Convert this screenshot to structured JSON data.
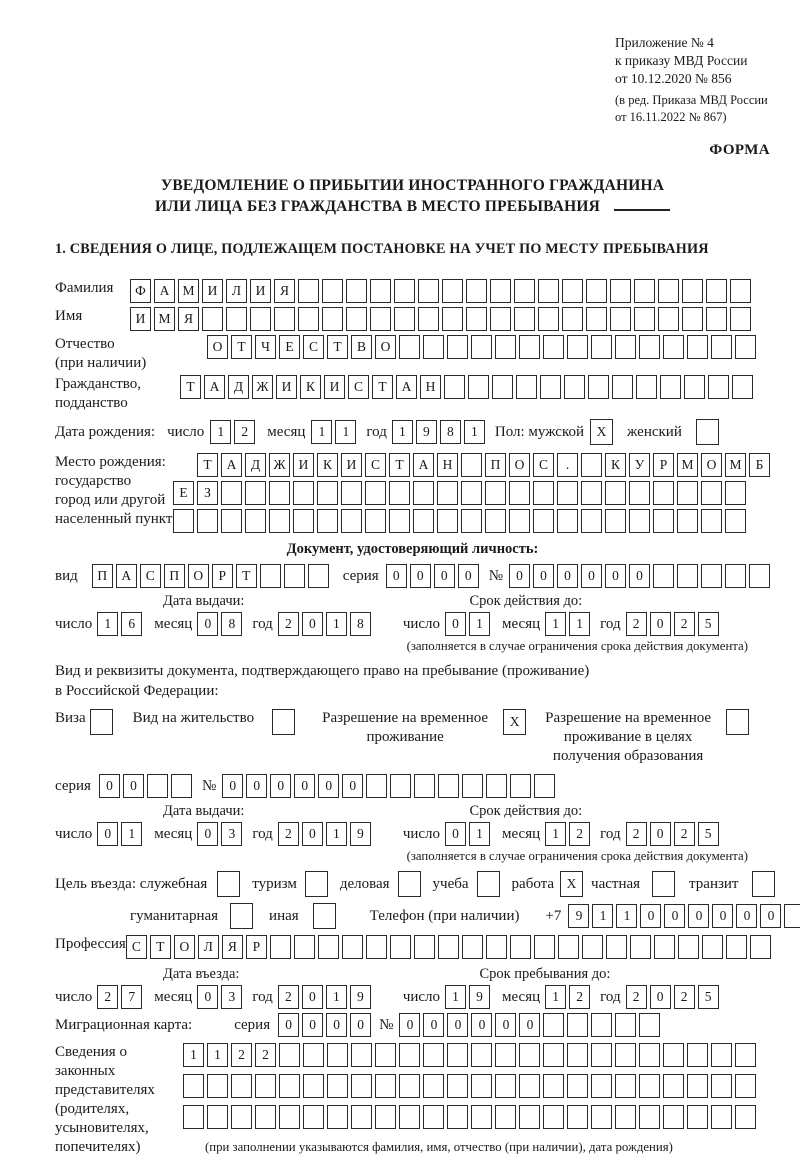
{
  "colors": {
    "ink": "#1a1a1a",
    "box_border": "#2a2a2a"
  },
  "annex": {
    "line1": "Приложение № 4",
    "line2": "к приказу МВД России",
    "line3": "от 10.12.2020 № 856",
    "line4": "(в ред. Приказа МВД России",
    "line5": "от 16.11.2022 № 867)"
  },
  "form_label": "ФОРМА",
  "title": {
    "line1": "УВЕДОМЛЕНИЕ О ПРИБЫТИИ ИНОСТРАННОГО ГРАЖДАНИНА",
    "line2": "ИЛИ ЛИЦА БЕЗ ГРАЖДАНСТВА В МЕСТО ПРЕБЫВАНИЯ"
  },
  "section1_title": "1. СВЕДЕНИЯ О ЛИЦЕ, ПОДЛЕЖАЩЕМ ПОСТАНОВКЕ НА УЧЕТ ПО МЕСТУ ПРЕБЫВАНИЯ",
  "labels": {
    "surname": "Фамилия",
    "name": "Имя",
    "patronymic": "Отчество",
    "patronymic_note": "(при наличии)",
    "citizenship1": "Гражданство,",
    "citizenship2": "подданство",
    "birth_date": "Дата рождения:",
    "day": "число",
    "month": "месяц",
    "year": "год",
    "sex_male": "Пол: мужской",
    "sex_female": "женский",
    "birth_place": "Место рождения:",
    "state": "государство",
    "city1": "город или другой",
    "city2": "населенный пункт",
    "identity_heading": "Документ, удостоверяющий личность:",
    "kind": "вид",
    "series": "серия",
    "number": "№",
    "issue_date": "Дата выдачи:",
    "valid_until": "Срок действия до:",
    "validity_note": "(заполняется в случае ограничения срока действия документа)",
    "residence_intro1": "Вид и реквизиты документа, подтверждающего право на пребывание (проживание)",
    "residence_intro2": "в Российской Федерации:",
    "visa": "Виза",
    "residence_permit": "Вид на жительство",
    "temp_permit1": "Разрешение на временное",
    "temp_permit2": "проживание",
    "temp_edu1": "Разрешение на временное",
    "temp_edu2": "проживание в целях",
    "temp_edu3": "получения образования",
    "purpose": "Цель въезда: служебная",
    "tourism": "туризм",
    "business": "деловая",
    "study": "учеба",
    "work": "работа",
    "private": "частная",
    "transit": "транзит",
    "humanitarian": "гуманитарная",
    "other": "иная",
    "phone": "Телефон (при наличии)",
    "phone_prefix": "+7",
    "profession": "Профессия",
    "entry_date": "Дата въезда:",
    "stay_until": "Срок пребывания до:",
    "migration_card": "Миграционная карта:",
    "rep1": "Сведения о",
    "rep2": "законных",
    "rep3": "представителях",
    "rep4": "(родителях,",
    "rep5": "усыновителях,",
    "rep6": "попечителях)",
    "rep_note": "(при заполнении указываются фамилия, имя, отчество (при наличии), дата рождения)"
  },
  "fields": {
    "surname": {
      "v": "ФАМИЛИЯ",
      "n": 26
    },
    "name": {
      "v": "ИМЯ",
      "n": 26
    },
    "patronymic": {
      "v": "ОТЧЕСТВО",
      "n": 23
    },
    "citizenship": {
      "v": "ТАДЖИКИСТАН",
      "n": 24
    },
    "birth_day": {
      "v": "12",
      "n": 2
    },
    "birth_month": {
      "v": "11",
      "n": 2
    },
    "birth_year": {
      "v": "1981",
      "n": 4
    },
    "sex_male": {
      "v": "X",
      "n": 1
    },
    "sex_female": {
      "v": "",
      "n": 1
    },
    "birthplace_row1": {
      "v": "ТАДЖИКИСТАН ПОС. КУРМОМБ",
      "n": 24
    },
    "birthplace_row2": {
      "v": "ЕЗ",
      "n": 24
    },
    "birthplace_row3": {
      "v": "",
      "n": 24
    },
    "id_kind": {
      "v": "ПАСПОРТ",
      "n": 10
    },
    "id_series": {
      "v": "0000",
      "n": 4
    },
    "id_number": {
      "v": "000000",
      "n": 11
    },
    "id_issue_day": {
      "v": "16",
      "n": 2
    },
    "id_issue_month": {
      "v": "08",
      "n": 2
    },
    "id_issue_year": {
      "v": "2018",
      "n": 4
    },
    "id_valid_day": {
      "v": "01",
      "n": 2
    },
    "id_valid_month": {
      "v": "11",
      "n": 2
    },
    "id_valid_year": {
      "v": "2025",
      "n": 4
    },
    "visa": {
      "v": "",
      "n": 1
    },
    "residence_permit": {
      "v": "",
      "n": 1
    },
    "temp_permit": {
      "v": "X",
      "n": 1
    },
    "temp_edu": {
      "v": "",
      "n": 1
    },
    "res_series": {
      "v": "00",
      "n": 4
    },
    "res_number": {
      "v": "000000",
      "n": 14
    },
    "res_issue_day": {
      "v": "01",
      "n": 2
    },
    "res_issue_month": {
      "v": "03",
      "n": 2
    },
    "res_issue_year": {
      "v": "2019",
      "n": 4
    },
    "res_valid_day": {
      "v": "01",
      "n": 2
    },
    "res_valid_month": {
      "v": "12",
      "n": 2
    },
    "res_valid_year": {
      "v": "2025",
      "n": 4
    },
    "purpose_official": {
      "v": "",
      "n": 1
    },
    "purpose_tourism": {
      "v": "",
      "n": 1
    },
    "purpose_business": {
      "v": "",
      "n": 1
    },
    "purpose_study": {
      "v": "",
      "n": 1
    },
    "purpose_work": {
      "v": "X",
      "n": 1
    },
    "purpose_private": {
      "v": "",
      "n": 1
    },
    "purpose_transit": {
      "v": "",
      "n": 1
    },
    "purpose_humanitarian": {
      "v": "",
      "n": 1
    },
    "purpose_other": {
      "v": "",
      "n": 1
    },
    "phone": {
      "v": "911000000",
      "n": 10
    },
    "profession": {
      "v": "СТОЛЯР",
      "n": 27
    },
    "entry_day": {
      "v": "27",
      "n": 2
    },
    "entry_month": {
      "v": "03",
      "n": 2
    },
    "entry_year": {
      "v": "2019",
      "n": 4
    },
    "stay_day": {
      "v": "19",
      "n": 2
    },
    "stay_month": {
      "v": "12",
      "n": 2
    },
    "stay_year": {
      "v": "2025",
      "n": 4
    },
    "mig_series": {
      "v": "0000",
      "n": 4
    },
    "mig_number": {
      "v": "000000",
      "n": 11
    },
    "rep_row1": {
      "v": "1122",
      "n": 24
    },
    "rep_row2": {
      "v": "",
      "n": 24
    },
    "rep_row3": {
      "v": "",
      "n": 24
    }
  }
}
